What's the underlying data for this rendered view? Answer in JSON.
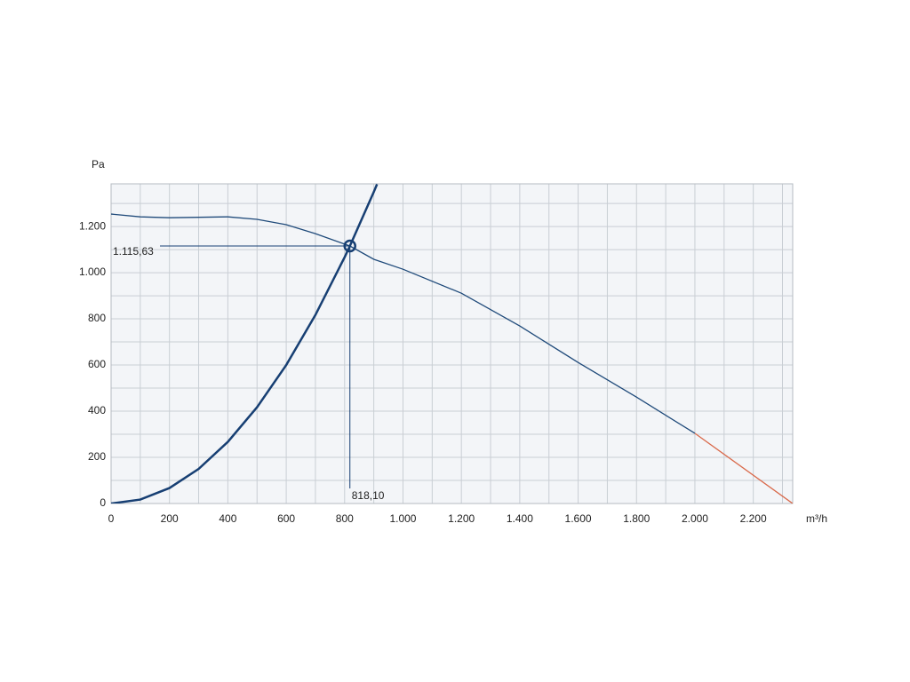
{
  "chart_data": {
    "type": "line",
    "y_label": "Pa",
    "x_label": "m³/h",
    "xlim": [
      0,
      2335
    ],
    "ylim": [
      0,
      1385
    ],
    "xticks": [
      0,
      200,
      400,
      600,
      800,
      {
        "value": 1000,
        "label": "1.000"
      },
      {
        "value": 1200,
        "label": "1.200"
      },
      {
        "value": 1400,
        "label": "1.400"
      },
      {
        "value": 1600,
        "label": "1.600"
      },
      {
        "value": 1800,
        "label": "1.800"
      },
      {
        "value": 2000,
        "label": "2.000"
      },
      {
        "value": 2200,
        "label": "2.200"
      }
    ],
    "yticks": [
      0,
      200,
      400,
      600,
      800,
      {
        "value": 1000,
        "label": "1.000"
      },
      {
        "value": 1200,
        "label": "1.200"
      }
    ],
    "xgrid": [
      100,
      300,
      500,
      700,
      900,
      1100,
      1300,
      1500,
      1700,
      1900,
      2100,
      2300
    ],
    "ygrid": [
      100,
      300,
      500,
      700,
      900,
      1100,
      1300
    ],
    "grid": true,
    "series": [
      {
        "color": "#1f4a7a",
        "width": 1.3,
        "x": [
          0,
          100,
          200,
          300,
          400,
          500,
          600,
          700,
          818.1,
          900,
          1000,
          1200,
          1400,
          1600,
          1800,
          2000
        ],
        "values": [
          1254,
          1242,
          1238,
          1240,
          1242,
          1231,
          1208,
          1169,
          1115.63,
          1058,
          1015,
          911,
          769,
          611,
          461,
          304
        ]
      },
      {
        "color": "#d9694a",
        "width": 1.3,
        "x": [
          2000,
          2335
        ],
        "values": [
          304,
          0
        ]
      },
      {
        "color": "#173f73",
        "width": 2.5,
        "x": [
          0,
          100,
          200,
          300,
          400,
          500,
          600,
          700,
          800,
          818.1,
          900,
          911
        ],
        "values": [
          0,
          17,
          67,
          150,
          267,
          417,
          600,
          817,
          1067,
          1115.63,
          1350,
          1383
        ]
      }
    ],
    "operating_point": {
      "x": 818.1,
      "y": 1115.63,
      "x_label": "818,10",
      "y_label": "1.115,63",
      "color": "#173f73"
    }
  }
}
